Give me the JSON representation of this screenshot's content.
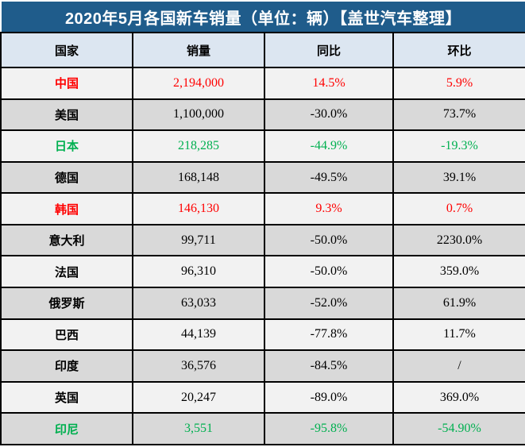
{
  "title": "2020年5月各国新车销量（单位：辆）【盖世汽车整理】",
  "colors": {
    "title_bar_bg": "#1F5C8B",
    "header_bg": "#DCE6F1",
    "row_light_bg": "#F2F2F2",
    "row_dark_bg": "#D9D9D9",
    "growth_red": "#FF0000",
    "decline_green": "#00B050",
    "default_text": "#000000",
    "border": "#000000"
  },
  "table": {
    "columns": [
      "国家",
      "销量",
      "同比",
      "环比"
    ],
    "rows": [
      {
        "country": "中国",
        "sales": "2,194,000",
        "yoy": "14.5%",
        "mom": "5.9%",
        "text_color": "#FF0000"
      },
      {
        "country": "美国",
        "sales": "1,100,000",
        "yoy": "-30.0%",
        "mom": "73.7%",
        "text_color": "#000000"
      },
      {
        "country": "日本",
        "sales": "218,285",
        "yoy": "-44.9%",
        "mom": "-19.3%",
        "text_color": "#00B050"
      },
      {
        "country": "德国",
        "sales": "168,148",
        "yoy": "-49.5%",
        "mom": "39.1%",
        "text_color": "#000000"
      },
      {
        "country": "韩国",
        "sales": "146,130",
        "yoy": "9.3%",
        "mom": "0.7%",
        "text_color": "#FF0000"
      },
      {
        "country": "意大利",
        "sales": "99,711",
        "yoy": "-50.0%",
        "mom": "2230.0%",
        "text_color": "#000000"
      },
      {
        "country": "法国",
        "sales": "96,310",
        "yoy": "-50.0%",
        "mom": "359.0%",
        "text_color": "#000000"
      },
      {
        "country": "俄罗斯",
        "sales": "63,033",
        "yoy": "-52.0%",
        "mom": "61.9%",
        "text_color": "#000000"
      },
      {
        "country": "巴西",
        "sales": "44,139",
        "yoy": "-77.8%",
        "mom": "11.7%",
        "text_color": "#000000"
      },
      {
        "country": "印度",
        "sales": "36,576",
        "yoy": "-84.5%",
        "mom": "/",
        "text_color": "#000000"
      },
      {
        "country": "英国",
        "sales": "20,247",
        "yoy": "-89.0%",
        "mom": "369.0%",
        "text_color": "#000000"
      },
      {
        "country": "印尼",
        "sales": "3,551",
        "yoy": "-95.8%",
        "mom": "-54.90%",
        "text_color": "#00B050"
      }
    ]
  }
}
